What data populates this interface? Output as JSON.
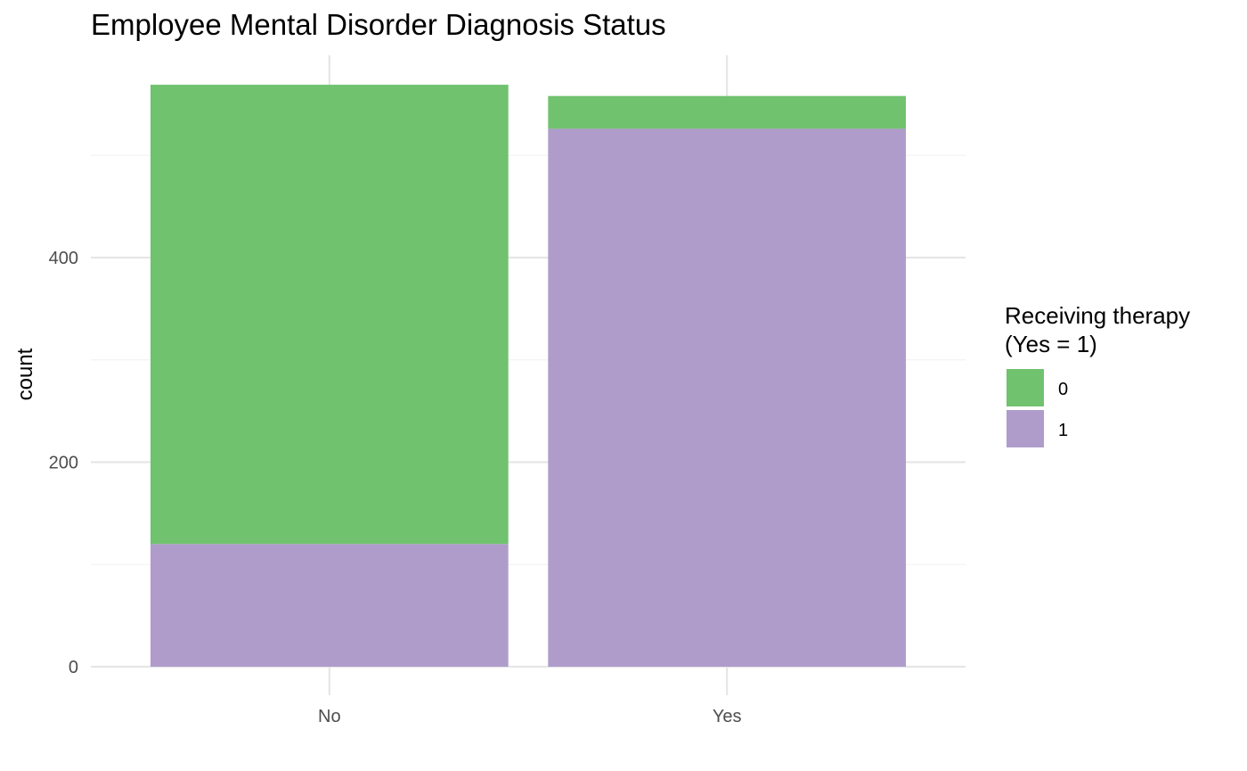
{
  "chart_data": {
    "type": "bar",
    "stacked": true,
    "title": "Employee Mental Disorder Diagnosis Status",
    "xlabel": "",
    "ylabel": "count",
    "categories": [
      "No",
      "Yes"
    ],
    "series": [
      {
        "name": "0",
        "values": [
          449,
          32
        ],
        "color": "#71C26F"
      },
      {
        "name": "1",
        "values": [
          120,
          526
        ],
        "color": "#AF9CCB"
      }
    ],
    "ylim": [
      0,
      570
    ],
    "yticks": [
      0,
      200,
      400
    ],
    "grid": true,
    "legend": {
      "title_lines": [
        "Receiving therapy",
        "(Yes = 1)"
      ],
      "position": "right"
    }
  }
}
